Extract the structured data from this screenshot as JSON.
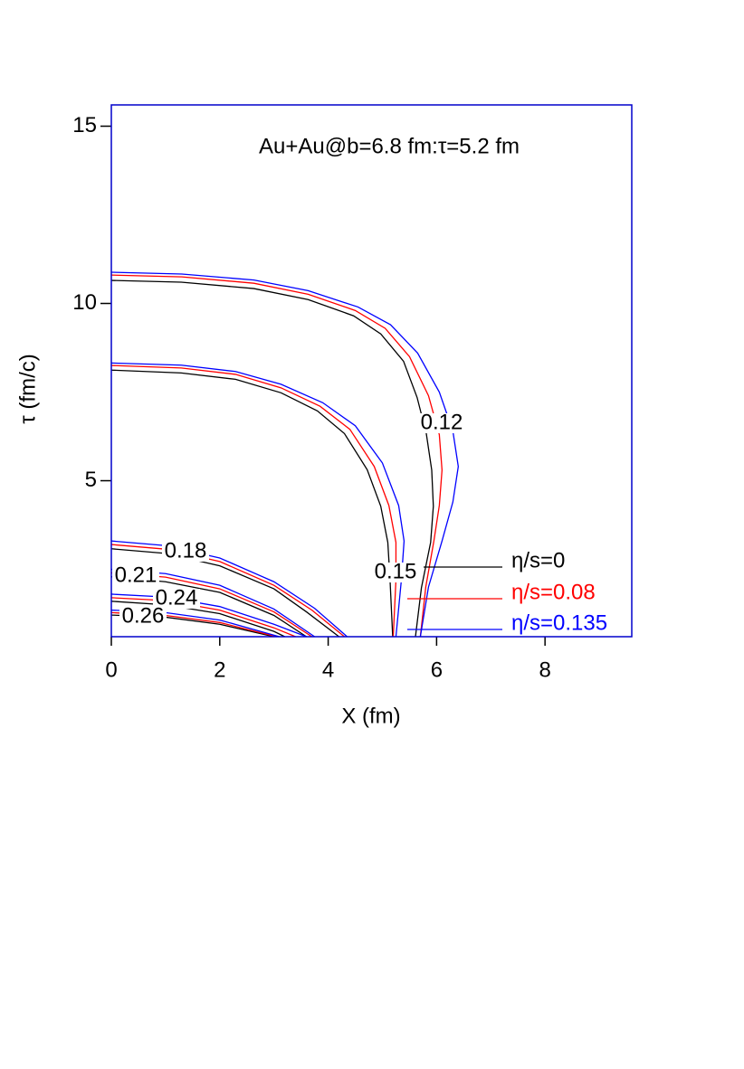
{
  "chart_data": {
    "type": "contour",
    "title": "Au+Au@b=6.8 fm:τ=5.2 fm",
    "xlabel": "X (fm)",
    "ylabel": "τ (fm/c)",
    "xlim": [
      0,
      9.6
    ],
    "ylim": [
      0.6,
      15.6
    ],
    "xticks": [
      0,
      2,
      4,
      6,
      8
    ],
    "yticks": [
      5,
      10,
      15
    ],
    "levels": [
      0.12,
      0.15,
      0.18,
      0.21,
      0.24,
      0.26
    ],
    "series": [
      {
        "name": "η/s=0",
        "color": "#000000",
        "contours": [
          {
            "x": [
              0,
              1.29,
              2.63,
              3.63,
              4.47,
              4.97,
              5.39,
              5.64,
              5.81,
              5.91,
              5.94,
              5.89,
              5.72,
              5.61
            ],
            "y": [
              10.65,
              10.6,
              10.42,
              10.11,
              9.65,
              9.14,
              8.37,
              7.35,
              6.33,
              5.3,
              4.28,
              3.26,
              1.98,
              0.6
            ]
          },
          {
            "x": [
              0,
              1.29,
              2.29,
              3.13,
              3.8,
              4.3,
              4.72,
              4.97,
              5.1,
              5.14,
              5.19
            ],
            "y": [
              8.12,
              8.04,
              7.86,
              7.48,
              6.97,
              6.33,
              5.31,
              4.28,
              3.26,
              2.24,
              0.6
            ]
          },
          {
            "x": [
              0,
              1,
              2,
              3,
              3.6,
              4.2
            ],
            "y": [
              3.08,
              2.95,
              2.6,
              1.95,
              1.3,
              0.6
            ]
          },
          {
            "x": [
              0,
              1,
              2,
              3,
              3.6
            ],
            "y": [
              2.29,
              2.15,
              1.85,
              1.2,
              0.6
            ]
          },
          {
            "x": [
              0,
              1,
              2,
              3,
              3.2
            ],
            "y": [
              1.6,
              1.5,
              1.25,
              0.75,
              0.6
            ]
          },
          {
            "x": [
              0,
              1,
              2,
              3
            ],
            "y": [
              1.21,
              1.15,
              0.95,
              0.6
            ]
          }
        ]
      },
      {
        "name": "η/s=0.08",
        "color": "#ff0000",
        "contours": [
          {
            "x": [
              0,
              1.3,
              2.63,
              3.63,
              4.5,
              5.05,
              5.5,
              5.85,
              6.05,
              6.1,
              6.05,
              5.95,
              5.8,
              5.7
            ],
            "y": [
              10.8,
              10.75,
              10.57,
              10.26,
              9.8,
              9.3,
              8.5,
              7.4,
              6.3,
              5.3,
              4.3,
              3.3,
              2.0,
              0.6
            ]
          },
          {
            "x": [
              0,
              1.29,
              2.29,
              3.13,
              3.85,
              4.4,
              4.85,
              5.12,
              5.25,
              5.25,
              5.2
            ],
            "y": [
              8.25,
              8.18,
              8.0,
              7.62,
              7.1,
              6.45,
              5.4,
              4.3,
              3.26,
              2.2,
              0.6
            ]
          },
          {
            "x": [
              0,
              1,
              2,
              3,
              3.7,
              4.3
            ],
            "y": [
              3.2,
              3.07,
              2.72,
              2.05,
              1.35,
              0.6
            ]
          },
          {
            "x": [
              0,
              1,
              2,
              3,
              3.7
            ],
            "y": [
              2.4,
              2.28,
              1.95,
              1.3,
              0.6
            ]
          },
          {
            "x": [
              0,
              1,
              2,
              3,
              3.4
            ],
            "y": [
              1.7,
              1.62,
              1.35,
              0.85,
              0.6
            ]
          },
          {
            "x": [
              0,
              1,
              2,
              3.05
            ],
            "y": [
              1.28,
              1.2,
              1.0,
              0.6
            ]
          }
        ]
      },
      {
        "name": "η/s=0.135",
        "color": "#0000ff",
        "contours": [
          {
            "x": [
              0,
              1.3,
              2.63,
              3.63,
              4.55,
              5.15,
              5.65,
              6.05,
              6.3,
              6.4,
              6.3,
              6.1,
              5.85,
              5.7
            ],
            "y": [
              10.88,
              10.83,
              10.66,
              10.36,
              9.9,
              9.4,
              8.6,
              7.5,
              6.4,
              5.4,
              4.4,
              3.3,
              2.0,
              0.6
            ]
          },
          {
            "x": [
              0,
              1.29,
              2.29,
              3.13,
              3.9,
              4.5,
              5.0,
              5.3,
              5.4,
              5.35,
              5.25
            ],
            "y": [
              8.32,
              8.26,
              8.08,
              7.72,
              7.2,
              6.55,
              5.5,
              4.3,
              3.3,
              2.2,
              0.6
            ]
          },
          {
            "x": [
              0,
              1,
              2,
              3,
              3.75,
              4.35
            ],
            "y": [
              3.3,
              3.17,
              2.82,
              2.15,
              1.4,
              0.6
            ]
          },
          {
            "x": [
              0,
              1,
              2,
              3,
              3.75
            ],
            "y": [
              2.5,
              2.38,
              2.05,
              1.38,
              0.6
            ]
          },
          {
            "x": [
              0,
              1,
              2,
              3,
              3.6
            ],
            "y": [
              1.8,
              1.72,
              1.45,
              0.95,
              0.6
            ]
          },
          {
            "x": [
              0,
              1,
              2,
              3.1
            ],
            "y": [
              1.35,
              1.28,
              1.07,
              0.6
            ]
          }
        ]
      }
    ]
  }
}
